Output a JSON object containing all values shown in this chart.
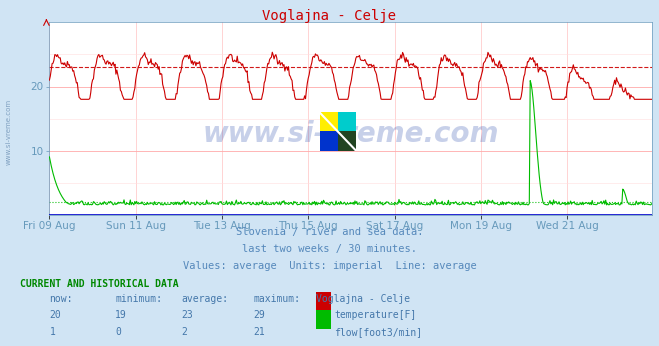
{
  "title": "Voglajna - Celje",
  "bg_color": "#d0e4f4",
  "plot_bg_color": "#ffffff",
  "grid_color_h": "#ffaaaa",
  "grid_color_v": "#ffcccc",
  "num_points": 672,
  "temp_color": "#cc0000",
  "flow_color": "#00bb00",
  "temp_avg_line": 23,
  "flow_avg_line": 2,
  "temp_min": 19,
  "temp_avg": 23,
  "temp_max": 29,
  "temp_now": 20,
  "flow_min": 0,
  "flow_avg": 2,
  "flow_max": 21,
  "flow_now": 1,
  "subtitle1": "Slovenia / river and sea data.",
  "subtitle2": "last two weeks / 30 minutes.",
  "subtitle3": "Values: average  Units: imperial  Line: average",
  "table_header": "CURRENT AND HISTORICAL DATA",
  "col_now": "now:",
  "col_min": "minimum:",
  "col_avg": "average:",
  "col_max": "maximum:",
  "station_name": "Voglajna - Celje",
  "row1_label": "temperature[F]",
  "row2_label": "flow[foot3/min]",
  "x_tick_labels": [
    "Fri 09 Aug",
    "Sun 11 Aug",
    "Tue 13 Aug",
    "Thu 15 Aug",
    "Sat 17 Aug",
    "Mon 19 Aug",
    "Wed 21 Aug"
  ],
  "x_tick_positions": [
    0,
    96,
    192,
    288,
    384,
    480,
    576
  ],
  "watermark": "www.si-vreme.com",
  "sidebar_text": "www.si-vreme.com",
  "axis_label_color": "#6699bb",
  "text_color": "#4477aa",
  "subtitle_color": "#5588bb",
  "table_header_color": "#008800",
  "title_color": "#cc0000",
  "blue_line_color": "#0000cc",
  "ylim": [
    0,
    30
  ],
  "yticks": [
    10,
    20
  ]
}
